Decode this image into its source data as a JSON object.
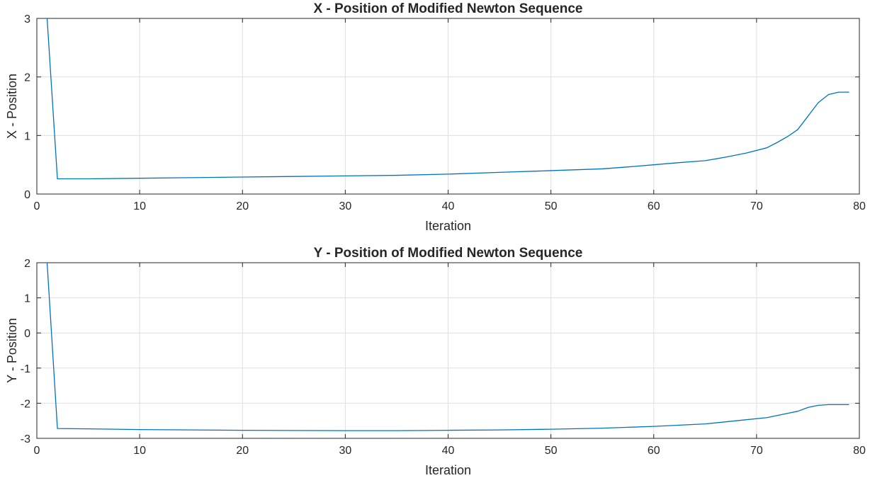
{
  "chart_data": [
    {
      "type": "line",
      "title": "X - Position of Modified Newton Sequence",
      "xlabel": "Iteration",
      "ylabel": "X - Position",
      "xlim": [
        0,
        80
      ],
      "ylim": [
        0,
        3
      ],
      "xticks": [
        "0",
        "10",
        "20",
        "30",
        "40",
        "50",
        "60",
        "70",
        "80"
      ],
      "yticks": [
        "0",
        "1",
        "2",
        "3"
      ],
      "grid": true,
      "line_color": "#0072BD",
      "x": [
        1,
        2,
        5,
        10,
        15,
        20,
        25,
        30,
        35,
        40,
        45,
        50,
        55,
        58,
        60,
        62,
        65,
        67,
        69,
        71,
        72,
        73,
        74,
        75,
        76,
        77,
        78,
        79
      ],
      "y": [
        3.0,
        0.26,
        0.26,
        0.27,
        0.28,
        0.29,
        0.3,
        0.31,
        0.32,
        0.34,
        0.37,
        0.4,
        0.43,
        0.47,
        0.5,
        0.53,
        0.57,
        0.63,
        0.7,
        0.79,
        0.88,
        0.98,
        1.1,
        1.33,
        1.56,
        1.7,
        1.74,
        1.74
      ]
    },
    {
      "type": "line",
      "title": "Y - Position of Modified Newton Sequence",
      "xlabel": "Iteration",
      "ylabel": "Y - Position",
      "xlim": [
        0,
        80
      ],
      "ylim": [
        -3,
        2
      ],
      "xticks": [
        "0",
        "10",
        "20",
        "30",
        "40",
        "50",
        "60",
        "70",
        "80"
      ],
      "yticks": [
        "-3",
        "-2",
        "-1",
        "0",
        "1",
        "2"
      ],
      "grid": true,
      "line_color": "#0072BD",
      "x": [
        1,
        2,
        5,
        10,
        20,
        30,
        35,
        40,
        45,
        50,
        55,
        60,
        65,
        68,
        71,
        72,
        73,
        74,
        75,
        76,
        77,
        78,
        79
      ],
      "y": [
        2.0,
        -2.72,
        -2.73,
        -2.75,
        -2.77,
        -2.78,
        -2.78,
        -2.77,
        -2.76,
        -2.74,
        -2.71,
        -2.66,
        -2.59,
        -2.5,
        -2.41,
        -2.35,
        -2.29,
        -2.23,
        -2.12,
        -2.06,
        -2.04,
        -2.04,
        -2.04
      ]
    }
  ]
}
